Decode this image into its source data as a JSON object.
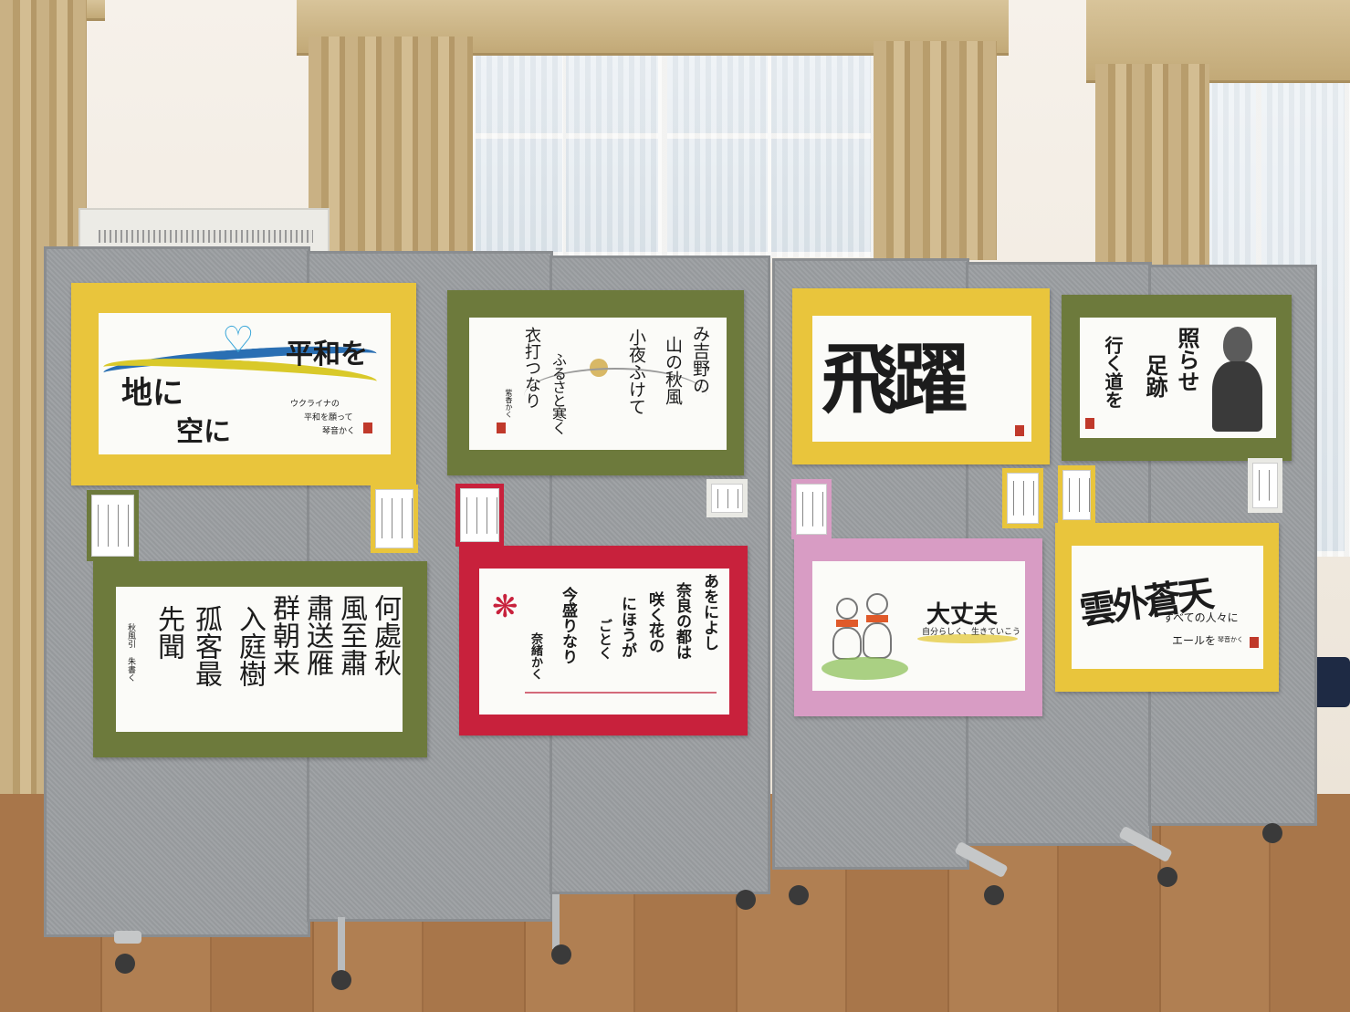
{
  "artworks": [
    {
      "id": "peace",
      "main": "平和を",
      "line2": "地に",
      "line3": "空に",
      "caption1": "ウクライナの",
      "caption2": "平和を願って",
      "signature": "琴音かく"
    },
    {
      "id": "yoshino",
      "col1": "み吉野の",
      "col2": "山の秋風",
      "col3": "小夜ふけて",
      "col4": "ふるさと寒く",
      "col5": "衣打つなり",
      "signature": "紫香かく"
    },
    {
      "id": "hiyaku",
      "text": "飛躍"
    },
    {
      "id": "buddha",
      "col1": "照らせ",
      "col2": "足跡",
      "col3": "行く道を"
    },
    {
      "id": "kanshi",
      "col1": "何處秋",
      "col2": "風至肅",
      "col3": "肅送雁",
      "col4": "群朝来",
      "col5": "入庭樹",
      "col6": "孤客最",
      "col7": "先聞",
      "signature": "秋風引 朱書く"
    },
    {
      "id": "nara",
      "col1": "あをによし",
      "col2": "奈良の都は",
      "col3": "咲く花の",
      "col4": "にほうが",
      "col5": "ごとく",
      "col6": "今盛りなり",
      "signature": "奈緒かく"
    },
    {
      "id": "daijoubu",
      "title": "大丈夫",
      "subtitle": "自分らしく、生きていこう"
    },
    {
      "id": "unga",
      "title": "雲外蒼天",
      "subtitle": "すべての人々に",
      "subtitle2": "エールを",
      "signature": "琴音かく"
    }
  ]
}
